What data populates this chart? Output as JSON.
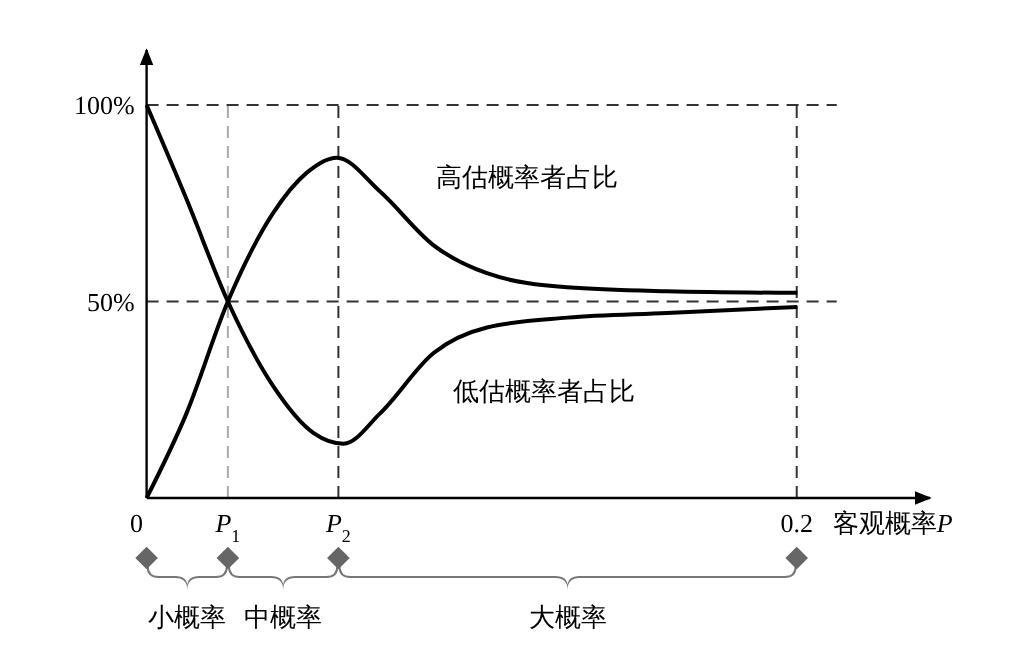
{
  "chart_data": {
    "type": "line",
    "xlabel": "客观概率P",
    "xlim": [
      0,
      0.241
    ],
    "ylim": [
      0,
      114
    ],
    "xticks": [
      0,
      0.2
    ],
    "ref_lines": [
      {
        "axis": "x",
        "value": 0.025,
        "label": "P$_{1}$",
        "color": "#aaaaaa",
        "line_style": "dashed"
      },
      {
        "axis": "x",
        "value": 0.059,
        "label": "P$_{2}$",
        "color": "#333333",
        "line_style": "dashed"
      }
    ],
    "yticks": [
      {
        "value": 50,
        "label": "50%"
      },
      {
        "value": 100,
        "label": "100%"
      }
    ],
    "grid": true,
    "legend": false,
    "marker": "none",
    "line_style": "solid",
    "series": [
      {
        "name": "高估概率者占比",
        "color": "#000000",
        "x": [
          0,
          0.0123,
          0.025,
          0.039,
          0.0493,
          0.0585,
          0.0719,
          0.0883,
          0.1047,
          0.1294,
          0.1601,
          0.2002
        ],
        "values": [
          0,
          21.6,
          50,
          72.6,
          82.8,
          86.6,
          77.9,
          64.3,
          57.2,
          53.6,
          52.6,
          52.2
        ]
      },
      {
        "name": "低估概率者占比",
        "color": "#000000",
        "x": [
          0,
          0.0123,
          0.025,
          0.039,
          0.0514,
          0.0606,
          0.0719,
          0.0883,
          0.1047,
          0.1294,
          0.1601,
          0.2002
        ],
        "values": [
          100,
          76,
          50,
          28.4,
          16.5,
          13.8,
          21.6,
          36.9,
          43.4,
          45.9,
          47.1,
          48.6
        ]
      }
    ],
    "annotations": [
      "小概率",
      "中概率",
      "大概率"
    ]
  }
}
